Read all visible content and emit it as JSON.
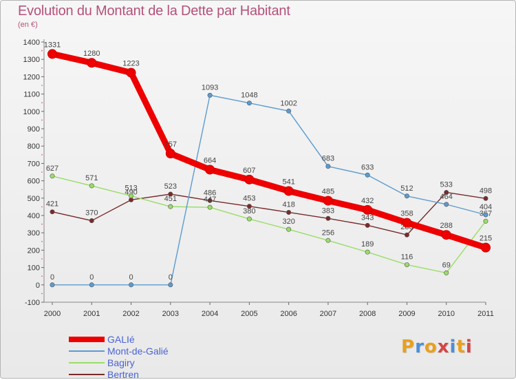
{
  "title": "Evolution du Montant de la Dette par Habitant",
  "subtitle": "(en €)",
  "logo": {
    "text": "Proxiti",
    "colors": [
      "#e8a020",
      "#4d8fd8",
      "#e8a020",
      "#d64444",
      "#4d8fd8",
      "#e8a020",
      "#d64444"
    ]
  },
  "chart_data": {
    "type": "line",
    "title": "Evolution du Montant de la Dette par Habitant",
    "ylabel": "(en €)",
    "xlabel": "",
    "x": [
      "2000",
      "2001",
      "2002",
      "2003",
      "2004",
      "2005",
      "2006",
      "2007",
      "2008",
      "2009",
      "2010",
      "2011"
    ],
    "ylim": [
      -100,
      1400
    ],
    "yticks": [
      -100,
      0,
      100,
      200,
      300,
      400,
      500,
      600,
      700,
      800,
      900,
      1000,
      1100,
      1200,
      1300,
      1400
    ],
    "grid": false,
    "legend_position": "bottom-left",
    "series": [
      {
        "name": "GALIé",
        "color": "#ee0000",
        "values": [
          1331,
          1280,
          1223,
          757,
          664,
          607,
          541,
          485,
          432,
          358,
          288,
          215
        ]
      },
      {
        "name": "Mont-de-Galié",
        "color": "#5b9bd0",
        "values": [
          0,
          0,
          0,
          0,
          1093,
          1048,
          1002,
          683,
          633,
          512,
          464,
          404
        ]
      },
      {
        "name": "Bagiry",
        "color": "#99dd66",
        "values": [
          627,
          571,
          513,
          451,
          447,
          380,
          320,
          256,
          189,
          116,
          69,
          367
        ]
      },
      {
        "name": "Bertren",
        "color": "#7a2a2a",
        "values": [
          421,
          370,
          490,
          523,
          486,
          453,
          418,
          383,
          343,
          288,
          533,
          498
        ]
      }
    ]
  }
}
